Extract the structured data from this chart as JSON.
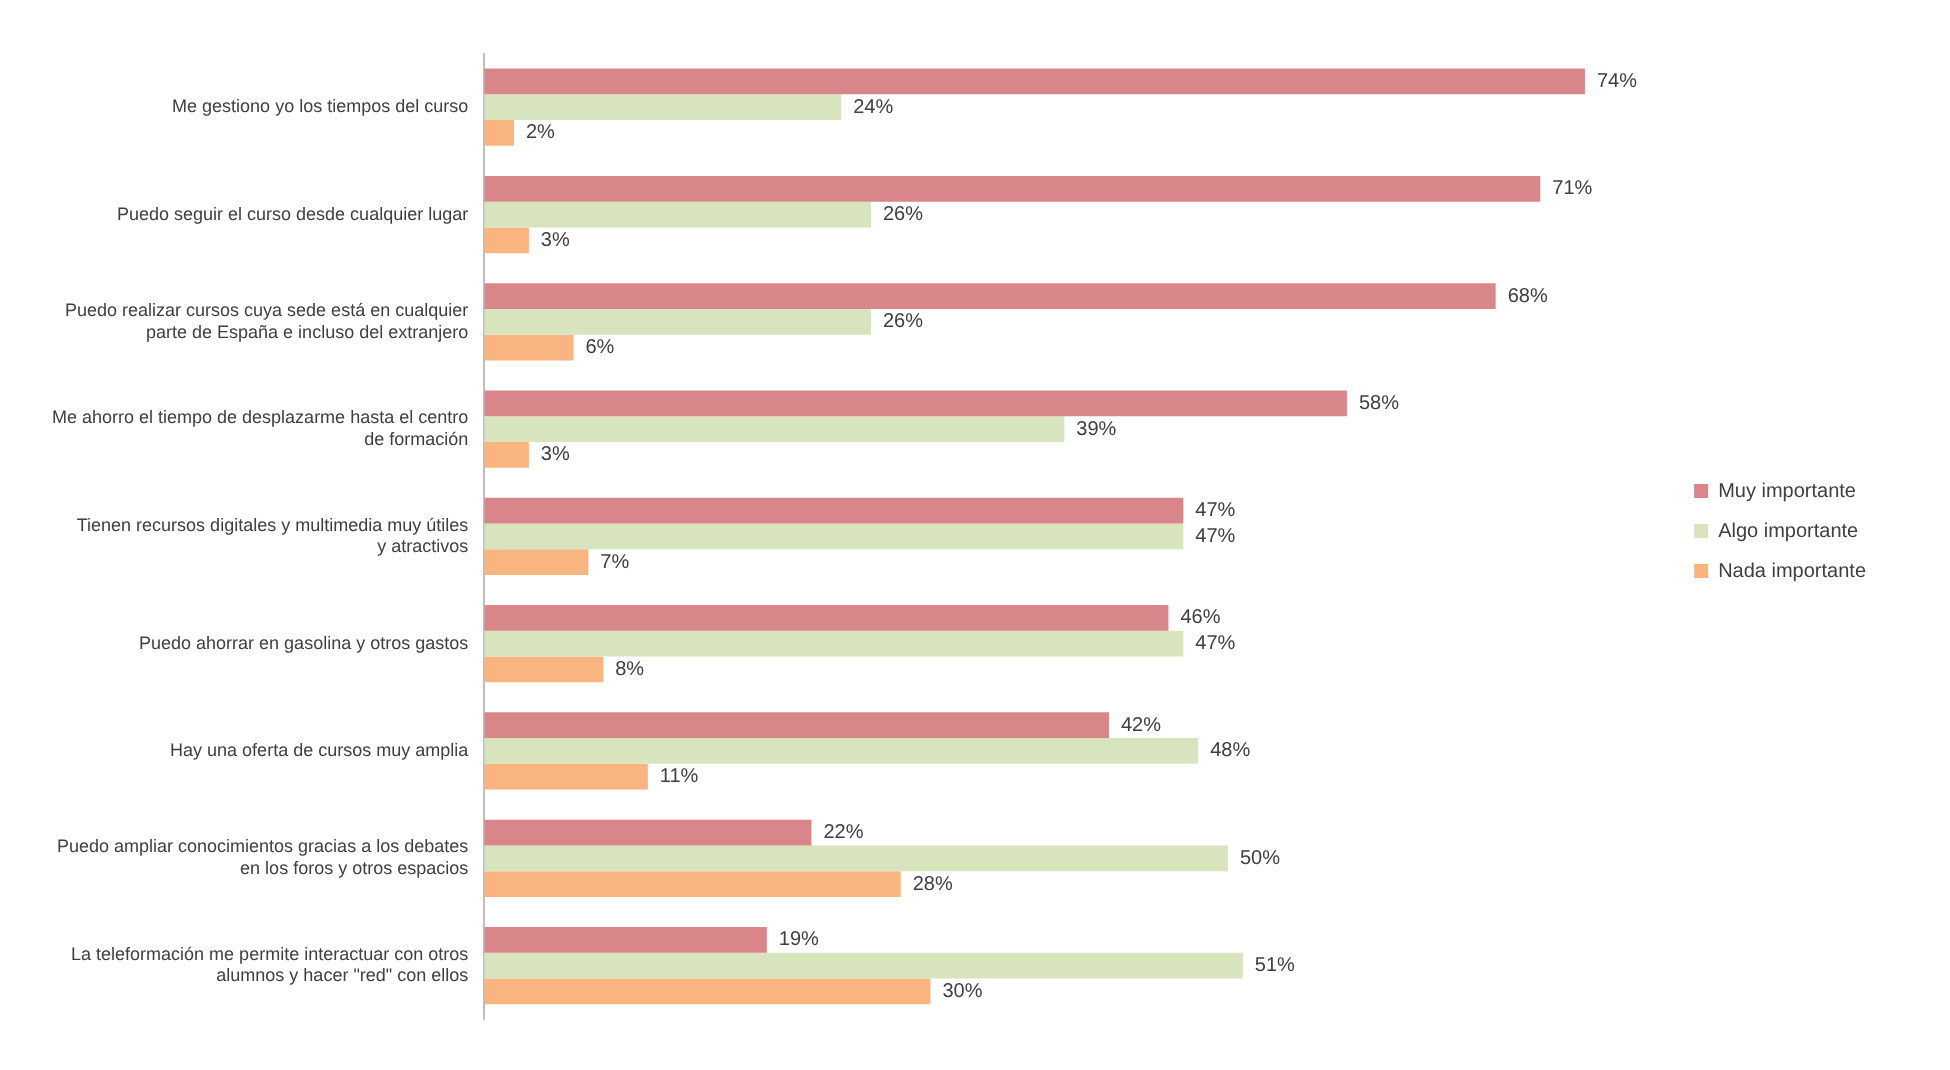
{
  "chart_data": {
    "type": "bar",
    "orientation": "horizontal",
    "legend": "right",
    "categories": [
      "Me gestiono yo los tiempos del curso",
      "Puedo seguir el curso desde cualquier lugar",
      "Puedo realizar cursos cuya sede está en cualquier parte de España e incluso del extranjero",
      "Me ahorro el tiempo de desplazarme hasta el centro de formación",
      "Tienen recursos digitales y multimedia muy útiles y atractivos",
      "Puedo ahorrar en gasolina y otros gastos",
      "Hay una oferta de cursos muy amplia",
      "Puedo ampliar conocimientos gracias a los debates en los foros y otros espacios",
      "La teleformación me permite interactuar con otros alumnos y hacer \"red\" con ellos"
    ],
    "series": [
      {
        "name": "Muy importante",
        "color": "#d9868a",
        "values": [
          74,
          71,
          68,
          58,
          47,
          46,
          42,
          22,
          19
        ],
        "value_labels": [
          "74%",
          "71%",
          "68%",
          "58%",
          "47%",
          "46%",
          "42%",
          "22%",
          "19%"
        ]
      },
      {
        "name": "Algo importante",
        "color": "#d7e4bd",
        "values": [
          24,
          26,
          26,
          39,
          47,
          47,
          48,
          50,
          51
        ],
        "value_labels": [
          "24%",
          "26%",
          "26%",
          "39%",
          "47%",
          "47%",
          "48%",
          "50%",
          "51%"
        ]
      },
      {
        "name": "Nada importante",
        "color": "#f9b47f",
        "values": [
          2,
          3,
          6,
          3,
          7,
          8,
          11,
          28,
          30
        ],
        "value_labels": [
          "2%",
          "3%",
          "6%",
          "3%",
          "7%",
          "8%",
          "11%",
          "28%",
          "30%"
        ]
      }
    ]
  }
}
